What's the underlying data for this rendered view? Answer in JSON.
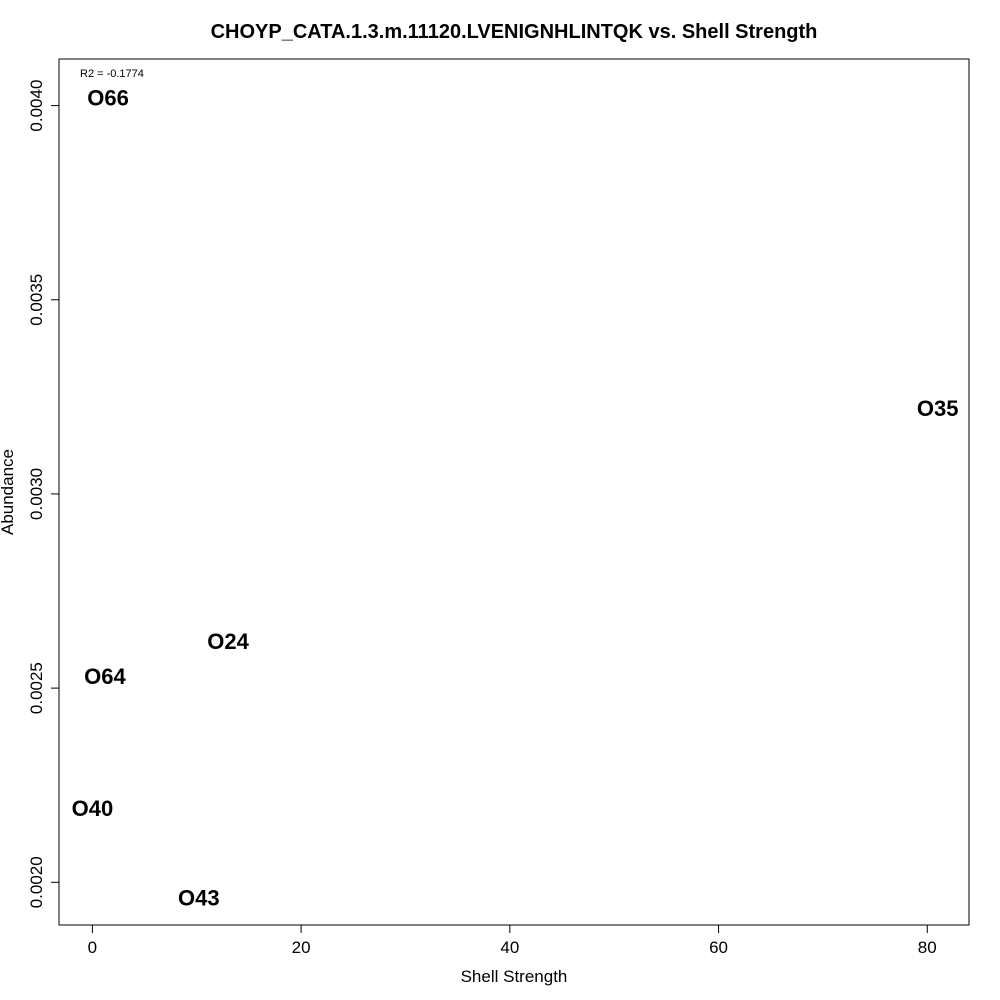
{
  "chart_data": {
    "type": "scatter",
    "title": "CHOYP_CATA.1.3.m.11120.LVENIGNHLINTQK vs. Shell Strength",
    "xlabel": "Shell Strength",
    "ylabel": "Abundance",
    "xlim": [
      -3.2,
      84.0
    ],
    "ylim": [
      0.00189,
      0.00412
    ],
    "x_ticks": [
      0,
      20,
      40,
      60,
      80
    ],
    "x_tick_labels": [
      "0",
      "20",
      "40",
      "60",
      "80"
    ],
    "y_ticks": [
      0.002,
      0.0025,
      0.003,
      0.0035,
      0.004
    ],
    "y_tick_labels": [
      "0.0020",
      "0.0025",
      "0.0030",
      "0.0035",
      "0.0040"
    ],
    "annotation": "R2 = -0.1774",
    "grid": false,
    "legend": "none",
    "points": [
      {
        "label": "O66",
        "x": 1.5,
        "y": 0.00402
      },
      {
        "label": "O35",
        "x": 81.0,
        "y": 0.00322
      },
      {
        "label": "O24",
        "x": 13.0,
        "y": 0.00262
      },
      {
        "label": "O64",
        "x": 1.2,
        "y": 0.00253
      },
      {
        "label": "O40",
        "x": 0.0,
        "y": 0.00219
      },
      {
        "label": "O43",
        "x": 10.2,
        "y": 0.00196
      }
    ]
  }
}
